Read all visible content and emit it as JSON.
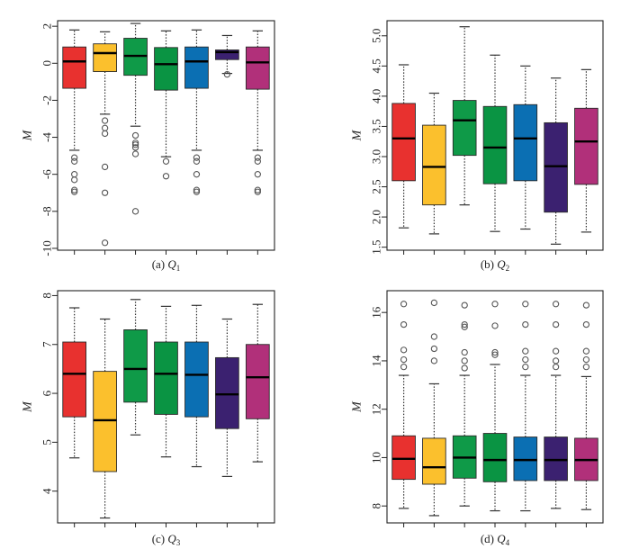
{
  "figure": {
    "colors": [
      "#e8312f",
      "#fbc02d",
      "#0f9a48",
      "#0a9443",
      "#0b6fb3",
      "#3b2170",
      "#b1307a"
    ]
  },
  "chart_data": [
    {
      "type": "box",
      "panel": "(a)",
      "caption_prefix": "(a) ",
      "caption_var": "Q",
      "caption_sub": "1",
      "ylabel": "M",
      "ylim": [
        -10.1,
        2.3
      ],
      "yticks": [
        2,
        0,
        -2,
        -4,
        -6,
        -8,
        -10
      ],
      "series": [
        {
          "whisker_low": -4.7,
          "q1": -1.35,
          "median": 0.1,
          "q3": 0.88,
          "whisker_high": 1.8,
          "outliers": [
            -5.1,
            -5.3,
            -6.0,
            -6.3,
            -6.85,
            -6.95
          ]
        },
        {
          "whisker_low": -2.75,
          "q1": -0.45,
          "median": 0.55,
          "q3": 1.05,
          "whisker_high": 1.7,
          "outliers": [
            -3.1,
            -3.5,
            -3.8,
            -5.6,
            -7.0,
            -9.7
          ]
        },
        {
          "whisker_low": -3.4,
          "q1": -0.65,
          "median": 0.4,
          "q3": 1.35,
          "whisker_high": 2.15,
          "outliers": [
            -3.9,
            -4.3,
            -4.4,
            -4.55,
            -4.9,
            -8.0
          ]
        },
        {
          "whisker_low": -5.05,
          "q1": -1.45,
          "median": -0.05,
          "q3": 0.85,
          "whisker_high": 1.75,
          "outliers": [
            -5.3,
            -6.1
          ]
        },
        {
          "whisker_low": -4.7,
          "q1": -1.35,
          "median": 0.1,
          "q3": 0.88,
          "whisker_high": 1.8,
          "outliers": [
            -5.1,
            -5.3,
            -6.0,
            -6.85,
            -6.95
          ]
        },
        {
          "whisker_low": -0.55,
          "q1": 0.2,
          "median": 0.6,
          "q3": 0.72,
          "whisker_high": 1.5,
          "outliers": [
            -0.6
          ]
        },
        {
          "whisker_low": -4.7,
          "q1": -1.4,
          "median": 0.05,
          "q3": 0.88,
          "whisker_high": 1.75,
          "outliers": [
            -5.1,
            -5.3,
            -6.0,
            -6.85,
            -6.95
          ]
        }
      ]
    },
    {
      "type": "box",
      "panel": "(b)",
      "caption_prefix": "(b) ",
      "caption_var": "Q",
      "caption_sub": "2",
      "ylabel": "M",
      "ylim": [
        1.45,
        5.25
      ],
      "yticks": [
        1.5,
        2.0,
        2.5,
        3.0,
        3.5,
        4.0,
        4.5,
        5.0
      ],
      "series": [
        {
          "whisker_low": 1.82,
          "q1": 2.6,
          "median": 3.3,
          "q3": 3.88,
          "whisker_high": 4.52,
          "outliers": []
        },
        {
          "whisker_low": 1.72,
          "q1": 2.2,
          "median": 2.83,
          "q3": 3.52,
          "whisker_high": 4.05,
          "outliers": []
        },
        {
          "whisker_low": 2.2,
          "q1": 3.02,
          "median": 3.6,
          "q3": 3.93,
          "whisker_high": 5.15,
          "outliers": []
        },
        {
          "whisker_low": 1.76,
          "q1": 2.55,
          "median": 3.15,
          "q3": 3.83,
          "whisker_high": 4.68,
          "outliers": []
        },
        {
          "whisker_low": 1.8,
          "q1": 2.6,
          "median": 3.3,
          "q3": 3.86,
          "whisker_high": 4.5,
          "outliers": []
        },
        {
          "whisker_low": 1.55,
          "q1": 2.08,
          "median": 2.84,
          "q3": 3.56,
          "whisker_high": 4.3,
          "outliers": []
        },
        {
          "whisker_low": 1.75,
          "q1": 2.54,
          "median": 3.25,
          "q3": 3.8,
          "whisker_high": 4.44,
          "outliers": []
        }
      ]
    },
    {
      "type": "box",
      "panel": "(c)",
      "caption_prefix": "(c) ",
      "caption_var": "Q",
      "caption_sub": "3",
      "ylabel": "M",
      "ylim": [
        3.35,
        8.1
      ],
      "yticks": [
        4,
        5,
        6,
        7,
        8
      ],
      "series": [
        {
          "whisker_low": 4.68,
          "q1": 5.52,
          "median": 6.4,
          "q3": 7.05,
          "whisker_high": 7.75,
          "outliers": []
        },
        {
          "whisker_low": 3.45,
          "q1": 4.4,
          "median": 5.45,
          "q3": 6.45,
          "whisker_high": 7.52,
          "outliers": []
        },
        {
          "whisker_low": 5.15,
          "q1": 5.82,
          "median": 6.5,
          "q3": 7.3,
          "whisker_high": 7.92,
          "outliers": []
        },
        {
          "whisker_low": 4.7,
          "q1": 5.57,
          "median": 6.4,
          "q3": 7.05,
          "whisker_high": 7.78,
          "outliers": []
        },
        {
          "whisker_low": 4.5,
          "q1": 5.52,
          "median": 6.38,
          "q3": 7.05,
          "whisker_high": 7.8,
          "outliers": []
        },
        {
          "whisker_low": 4.3,
          "q1": 5.28,
          "median": 5.98,
          "q3": 6.73,
          "whisker_high": 7.52,
          "outliers": []
        },
        {
          "whisker_low": 4.6,
          "q1": 5.48,
          "median": 6.33,
          "q3": 7.0,
          "whisker_high": 7.82,
          "outliers": []
        }
      ]
    },
    {
      "type": "box",
      "panel": "(d)",
      "caption_prefix": "(d) ",
      "caption_var": "Q",
      "caption_sub": "4",
      "ylabel": "M",
      "ylim": [
        7.3,
        16.9
      ],
      "yticks": [
        8,
        10,
        12,
        14,
        16
      ],
      "series": [
        {
          "whisker_low": 7.9,
          "q1": 9.1,
          "median": 9.95,
          "q3": 10.9,
          "whisker_high": 13.4,
          "outliers": [
            13.75,
            14.05,
            14.45,
            15.5,
            16.35
          ]
        },
        {
          "whisker_low": 7.6,
          "q1": 8.9,
          "median": 9.6,
          "q3": 10.8,
          "whisker_high": 13.05,
          "outliers": [
            14.0,
            14.5,
            15.0,
            16.4
          ]
        },
        {
          "whisker_low": 8.0,
          "q1": 9.15,
          "median": 10.0,
          "q3": 10.9,
          "whisker_high": 13.4,
          "outliers": [
            13.7,
            14.0,
            14.35,
            15.4,
            15.5,
            16.3
          ]
        },
        {
          "whisker_low": 7.8,
          "q1": 9.0,
          "median": 9.9,
          "q3": 11.0,
          "whisker_high": 13.85,
          "outliers": [
            14.25,
            14.35,
            15.45,
            16.35
          ]
        },
        {
          "whisker_low": 7.8,
          "q1": 9.05,
          "median": 9.9,
          "q3": 10.85,
          "whisker_high": 13.4,
          "outliers": [
            13.75,
            14.05,
            14.4,
            15.5,
            16.35
          ]
        },
        {
          "whisker_low": 7.9,
          "q1": 9.05,
          "median": 9.9,
          "q3": 10.85,
          "whisker_high": 13.4,
          "outliers": [
            13.75,
            14.0,
            14.4,
            15.5,
            16.35
          ]
        },
        {
          "whisker_low": 7.85,
          "q1": 9.05,
          "median": 9.9,
          "q3": 10.8,
          "whisker_high": 13.35,
          "outliers": [
            13.75,
            14.05,
            14.4,
            15.5,
            16.3
          ]
        }
      ]
    }
  ]
}
